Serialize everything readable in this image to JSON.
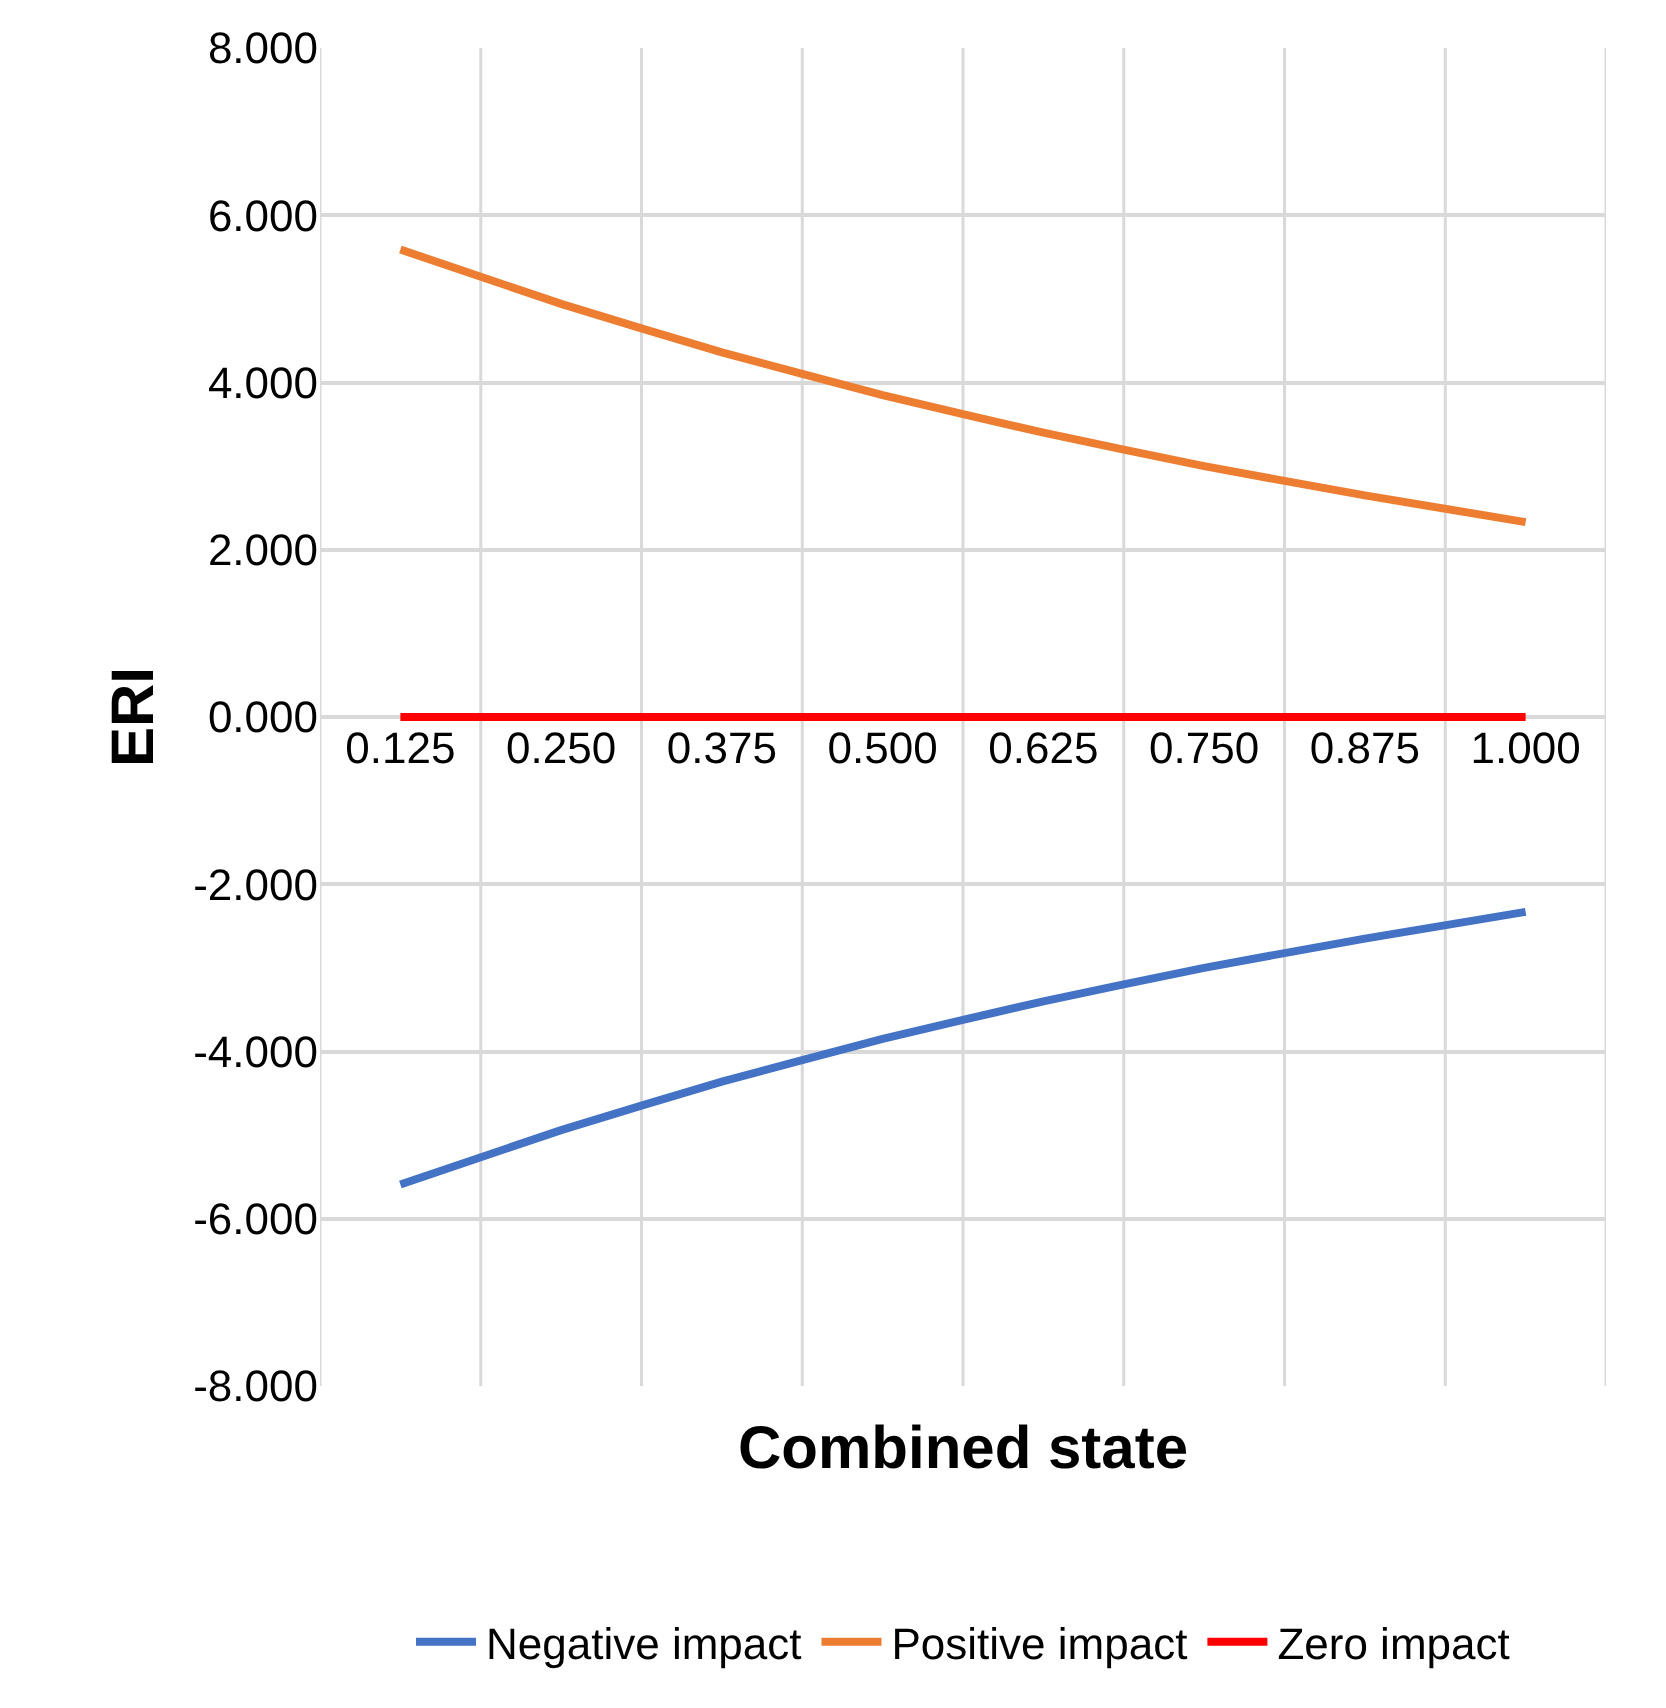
{
  "chart_data": {
    "type": "line",
    "xlabel": "Combined state",
    "ylabel": "ERI",
    "categories": [
      "0.125",
      "0.250",
      "0.375",
      "0.500",
      "0.625",
      "0.750",
      "0.875",
      "1.000"
    ],
    "series": [
      {
        "name": "Negative impact",
        "color": "#4472c4",
        "values": [
          -5.59,
          -4.94,
          -4.36,
          -3.85,
          -3.4,
          -3.0,
          -2.65,
          -2.33
        ]
      },
      {
        "name": "Positive impact",
        "color": "#ed7d31",
        "values": [
          5.59,
          4.94,
          4.36,
          3.85,
          3.4,
          3.0,
          2.65,
          2.33
        ]
      },
      {
        "name": "Zero impact",
        "color": "#ff0000",
        "values": [
          0,
          0,
          0,
          0,
          0,
          0,
          0,
          0
        ]
      }
    ],
    "ylim": [
      -8,
      8
    ],
    "yticks": [
      {
        "value": -8,
        "label": "-8.000"
      },
      {
        "value": -6,
        "label": "-6.000"
      },
      {
        "value": -4,
        "label": "-4.000"
      },
      {
        "value": -2,
        "label": "-2.000"
      },
      {
        "value": 0,
        "label": "0.000"
      },
      {
        "value": 2,
        "label": "2.000"
      },
      {
        "value": 4,
        "label": "4.000"
      },
      {
        "value": 6,
        "label": "6.000"
      },
      {
        "value": 8,
        "label": "8.000"
      }
    ],
    "grid": true,
    "legend": "bottom",
    "marker": "none",
    "line_style": "solid"
  }
}
